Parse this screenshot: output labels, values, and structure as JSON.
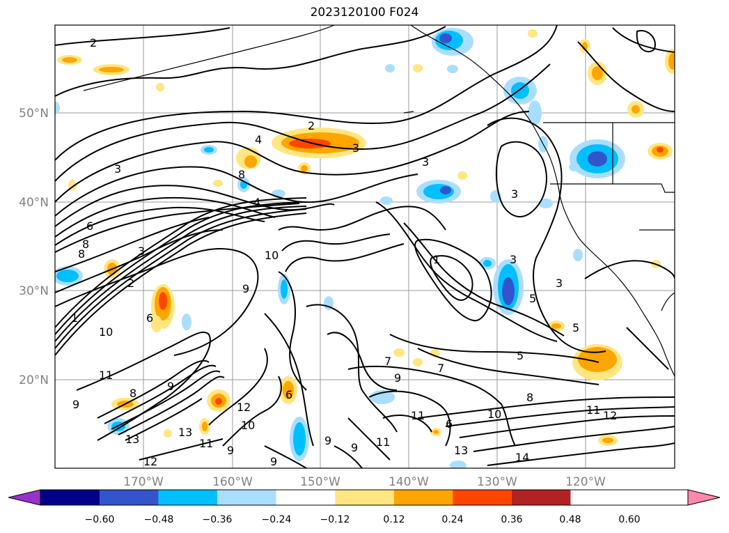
{
  "title": "2023120100 F024",
  "map": {
    "lat_labels": [
      "50°N",
      "40°N",
      "30°N",
      "20°N"
    ],
    "lon_labels": [
      "170°W",
      "160°W",
      "150°W",
      "140°W",
      "130°W",
      "120°W"
    ],
    "contour_labels": [
      "2",
      "3",
      "4",
      "8",
      "2",
      "3",
      "3",
      "3",
      "8",
      "6",
      "8",
      "4",
      "9",
      "10",
      "1",
      "2",
      "3",
      "1",
      "3",
      "5",
      "5",
      "3",
      "5",
      "10",
      "11",
      "9",
      "9",
      "8",
      "6",
      "6",
      "7",
      "7",
      "9",
      "8",
      "10",
      "11",
      "12",
      "13",
      "12",
      "11",
      "9",
      "10",
      "11",
      "9",
      "9",
      "6",
      "11",
      "13",
      "14",
      "9",
      "12",
      "13"
    ]
  },
  "colorbar": {
    "ticks": [
      "−0.60",
      "−0.48",
      "−0.36",
      "−0.24",
      "−0.12",
      "0.12",
      "0.24",
      "0.36",
      "0.48",
      "0.60"
    ],
    "colors": [
      "#9932cc",
      "#00008b",
      "#3355cc",
      "#00bfff",
      "#aadeff",
      "#ffffff",
      "#ffe680",
      "#ffa500",
      "#ff4500",
      "#b22222",
      "#ff88aa"
    ]
  }
}
